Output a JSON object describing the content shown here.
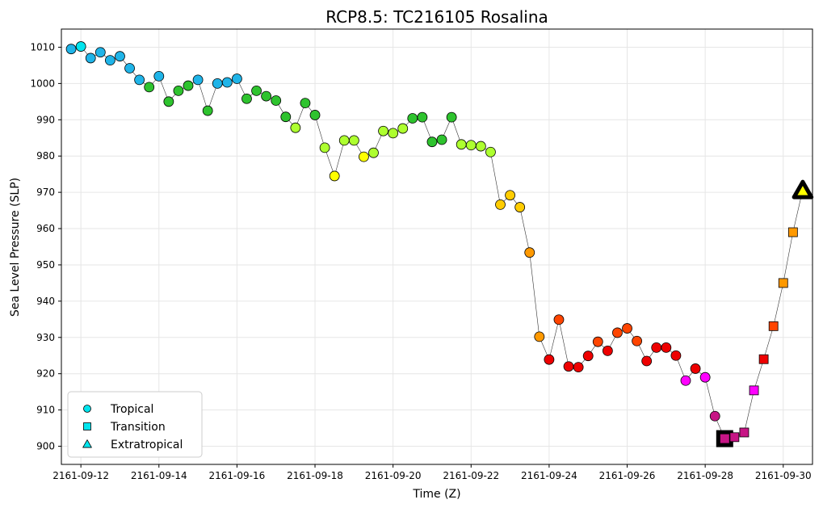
{
  "chart_data": {
    "type": "scatter",
    "title": "RCP8.5: TC216105 Rosalina",
    "xlabel": "Time (Z)",
    "ylabel": "Sea Level Pressure (SLP)",
    "ylim": [
      895,
      1015
    ],
    "xlim": [
      "2161-09-11T12:00",
      "2161-09-30T18:00"
    ],
    "grid": true,
    "x_ticks": [
      "2161-09-12",
      "2161-09-14",
      "2161-09-16",
      "2161-09-18",
      "2161-09-20",
      "2161-09-22",
      "2161-09-24",
      "2161-09-26",
      "2161-09-28",
      "2161-09-30"
    ],
    "y_ticks": [
      900,
      910,
      920,
      930,
      940,
      950,
      960,
      970,
      980,
      990,
      1000,
      1010
    ],
    "legend": {
      "position": "lower-left",
      "entries": [
        {
          "label": "Tropical",
          "marker": "circle",
          "color": "#00e5ee"
        },
        {
          "label": "Transition",
          "marker": "square",
          "color": "#00e5ee"
        },
        {
          "label": "Extratropical",
          "marker": "triangle",
          "color": "#00e5ee"
        }
      ]
    },
    "series": [
      {
        "values": [
          {
            "x": "2161-09-11T18:00",
            "y": 1009.5,
            "phase": "tropical",
            "color": "#1fb4e8"
          },
          {
            "x": "2161-09-12T00:00",
            "y": 1010.2,
            "phase": "tropical",
            "color": "#00e5ee"
          },
          {
            "x": "2161-09-12T06:00",
            "y": 1007.0,
            "phase": "tropical",
            "color": "#1fb4e8"
          },
          {
            "x": "2161-09-12T12:00",
            "y": 1008.6,
            "phase": "tropical",
            "color": "#1fb4e8"
          },
          {
            "x": "2161-09-12T18:00",
            "y": 1006.4,
            "phase": "tropical",
            "color": "#1fb4e8"
          },
          {
            "x": "2161-09-13T00:00",
            "y": 1007.5,
            "phase": "tropical",
            "color": "#1fb4e8"
          },
          {
            "x": "2161-09-13T06:00",
            "y": 1004.2,
            "phase": "tropical",
            "color": "#1fb4e8"
          },
          {
            "x": "2161-09-13T12:00",
            "y": 1001.0,
            "phase": "tropical",
            "color": "#1fb4e8"
          },
          {
            "x": "2161-09-13T18:00",
            "y": 999.0,
            "phase": "tropical",
            "color": "#2ec32e"
          },
          {
            "x": "2161-09-14T00:00",
            "y": 1002.0,
            "phase": "tropical",
            "color": "#1fb4e8"
          },
          {
            "x": "2161-09-14T06:00",
            "y": 995.0,
            "phase": "tropical",
            "color": "#2ec32e"
          },
          {
            "x": "2161-09-14T12:00",
            "y": 998.0,
            "phase": "tropical",
            "color": "#2ec32e"
          },
          {
            "x": "2161-09-14T18:00",
            "y": 999.4,
            "phase": "tropical",
            "color": "#2ec32e"
          },
          {
            "x": "2161-09-15T00:00",
            "y": 1001.0,
            "phase": "tropical",
            "color": "#1fb4e8"
          },
          {
            "x": "2161-09-15T06:00",
            "y": 992.5,
            "phase": "tropical",
            "color": "#2ec32e"
          },
          {
            "x": "2161-09-15T12:00",
            "y": 1000.0,
            "phase": "tropical",
            "color": "#1fb4e8"
          },
          {
            "x": "2161-09-15T18:00",
            "y": 1000.3,
            "phase": "tropical",
            "color": "#1fb4e8"
          },
          {
            "x": "2161-09-16T00:00",
            "y": 1001.3,
            "phase": "tropical",
            "color": "#1fb4e8"
          },
          {
            "x": "2161-09-16T06:00",
            "y": 995.8,
            "phase": "tropical",
            "color": "#2ec32e"
          },
          {
            "x": "2161-09-16T12:00",
            "y": 998.0,
            "phase": "tropical",
            "color": "#2ec32e"
          },
          {
            "x": "2161-09-16T18:00",
            "y": 996.5,
            "phase": "tropical",
            "color": "#2ec32e"
          },
          {
            "x": "2161-09-17T00:00",
            "y": 995.3,
            "phase": "tropical",
            "color": "#2ec32e"
          },
          {
            "x": "2161-09-17T06:00",
            "y": 990.8,
            "phase": "tropical",
            "color": "#2ec32e"
          },
          {
            "x": "2161-09-17T12:00",
            "y": 987.8,
            "phase": "tropical",
            "color": "#adff2f"
          },
          {
            "x": "2161-09-17T18:00",
            "y": 994.6,
            "phase": "tropical",
            "color": "#2ec32e"
          },
          {
            "x": "2161-09-18T00:00",
            "y": 991.3,
            "phase": "tropical",
            "color": "#2ec32e"
          },
          {
            "x": "2161-09-18T06:00",
            "y": 982.3,
            "phase": "tropical",
            "color": "#adff2f"
          },
          {
            "x": "2161-09-18T12:00",
            "y": 974.5,
            "phase": "tropical",
            "color": "#ffff00"
          },
          {
            "x": "2161-09-18T18:00",
            "y": 984.3,
            "phase": "tropical",
            "color": "#adff2f"
          },
          {
            "x": "2161-09-19T00:00",
            "y": 984.3,
            "phase": "tropical",
            "color": "#adff2f"
          },
          {
            "x": "2161-09-19T06:00",
            "y": 979.8,
            "phase": "tropical",
            "color": "#ffff00"
          },
          {
            "x": "2161-09-19T12:00",
            "y": 980.9,
            "phase": "tropical",
            "color": "#adff2f"
          },
          {
            "x": "2161-09-19T18:00",
            "y": 986.9,
            "phase": "tropical",
            "color": "#adff2f"
          },
          {
            "x": "2161-09-20T00:00",
            "y": 986.3,
            "phase": "tropical",
            "color": "#adff2f"
          },
          {
            "x": "2161-09-20T06:00",
            "y": 987.6,
            "phase": "tropical",
            "color": "#adff2f"
          },
          {
            "x": "2161-09-20T12:00",
            "y": 990.4,
            "phase": "tropical",
            "color": "#2ec32e"
          },
          {
            "x": "2161-09-20T18:00",
            "y": 990.7,
            "phase": "tropical",
            "color": "#2ec32e"
          },
          {
            "x": "2161-09-21T00:00",
            "y": 983.9,
            "phase": "tropical",
            "color": "#2ec32e"
          },
          {
            "x": "2161-09-21T06:00",
            "y": 984.5,
            "phase": "tropical",
            "color": "#2ec32e"
          },
          {
            "x": "2161-09-21T12:00",
            "y": 990.7,
            "phase": "tropical",
            "color": "#2ec32e"
          },
          {
            "x": "2161-09-21T18:00",
            "y": 983.2,
            "phase": "tropical",
            "color": "#adff2f"
          },
          {
            "x": "2161-09-22T00:00",
            "y": 983.0,
            "phase": "tropical",
            "color": "#adff2f"
          },
          {
            "x": "2161-09-22T06:00",
            "y": 982.7,
            "phase": "tropical",
            "color": "#adff2f"
          },
          {
            "x": "2161-09-22T12:00",
            "y": 981.1,
            "phase": "tropical",
            "color": "#adff2f"
          },
          {
            "x": "2161-09-22T18:00",
            "y": 966.6,
            "phase": "tropical",
            "color": "#ffcc00"
          },
          {
            "x": "2161-09-23T00:00",
            "y": 969.2,
            "phase": "tropical",
            "color": "#ffcc00"
          },
          {
            "x": "2161-09-23T06:00",
            "y": 965.9,
            "phase": "tropical",
            "color": "#ffcc00"
          },
          {
            "x": "2161-09-23T12:00",
            "y": 953.4,
            "phase": "tropical",
            "color": "#ff9900"
          },
          {
            "x": "2161-09-23T18:00",
            "y": 930.2,
            "phase": "tropical",
            "color": "#ff9900"
          },
          {
            "x": "2161-09-24T00:00",
            "y": 923.9,
            "phase": "tropical",
            "color": "#ee0000"
          },
          {
            "x": "2161-09-24T06:00",
            "y": 934.9,
            "phase": "tropical",
            "color": "#ff4500"
          },
          {
            "x": "2161-09-24T12:00",
            "y": 922.0,
            "phase": "tropical",
            "color": "#ee0000"
          },
          {
            "x": "2161-09-24T18:00",
            "y": 921.8,
            "phase": "tropical",
            "color": "#ee0000"
          },
          {
            "x": "2161-09-25T00:00",
            "y": 924.9,
            "phase": "tropical",
            "color": "#ee0000"
          },
          {
            "x": "2161-09-25T06:00",
            "y": 928.8,
            "phase": "tropical",
            "color": "#ff4500"
          },
          {
            "x": "2161-09-25T12:00",
            "y": 926.3,
            "phase": "tropical",
            "color": "#ee0000"
          },
          {
            "x": "2161-09-25T18:00",
            "y": 931.3,
            "phase": "tropical",
            "color": "#ff4500"
          },
          {
            "x": "2161-09-26T00:00",
            "y": 932.5,
            "phase": "tropical",
            "color": "#ff4500"
          },
          {
            "x": "2161-09-26T06:00",
            "y": 929.0,
            "phase": "tropical",
            "color": "#ff4500"
          },
          {
            "x": "2161-09-26T12:00",
            "y": 923.5,
            "phase": "tropical",
            "color": "#ee0000"
          },
          {
            "x": "2161-09-26T18:00",
            "y": 927.2,
            "phase": "tropical",
            "color": "#ee0000"
          },
          {
            "x": "2161-09-27T00:00",
            "y": 927.2,
            "phase": "tropical",
            "color": "#ee0000"
          },
          {
            "x": "2161-09-27T06:00",
            "y": 925.0,
            "phase": "tropical",
            "color": "#ee0000"
          },
          {
            "x": "2161-09-27T12:00",
            "y": 918.1,
            "phase": "tropical",
            "color": "#ff00ff"
          },
          {
            "x": "2161-09-27T18:00",
            "y": 921.4,
            "phase": "tropical",
            "color": "#ee0000"
          },
          {
            "x": "2161-09-28T00:00",
            "y": 919.0,
            "phase": "tropical",
            "color": "#ff00ff"
          },
          {
            "x": "2161-09-28T06:00",
            "y": 908.3,
            "phase": "tropical",
            "color": "#c71585"
          },
          {
            "x": "2161-09-28T12:00",
            "y": 902.1,
            "phase": "transition",
            "color": "#c71585",
            "highlight": true
          },
          {
            "x": "2161-09-28T18:00",
            "y": 902.5,
            "phase": "transition",
            "color": "#c71585"
          },
          {
            "x": "2161-09-29T00:00",
            "y": 903.8,
            "phase": "transition",
            "color": "#c71585"
          },
          {
            "x": "2161-09-29T06:00",
            "y": 915.4,
            "phase": "transition",
            "color": "#ff00ff"
          },
          {
            "x": "2161-09-29T12:00",
            "y": 924.0,
            "phase": "transition",
            "color": "#ee0000"
          },
          {
            "x": "2161-09-29T18:00",
            "y": 933.1,
            "phase": "transition",
            "color": "#ff4500"
          },
          {
            "x": "2161-09-30T00:00",
            "y": 945.0,
            "phase": "transition",
            "color": "#ff9900"
          },
          {
            "x": "2161-09-30T06:00",
            "y": 959.0,
            "phase": "transition",
            "color": "#ff9900"
          },
          {
            "x": "2161-09-30T12:00",
            "y": 970.7,
            "phase": "extratropical",
            "color": "#ffff00",
            "highlight": true
          }
        ]
      }
    ]
  }
}
